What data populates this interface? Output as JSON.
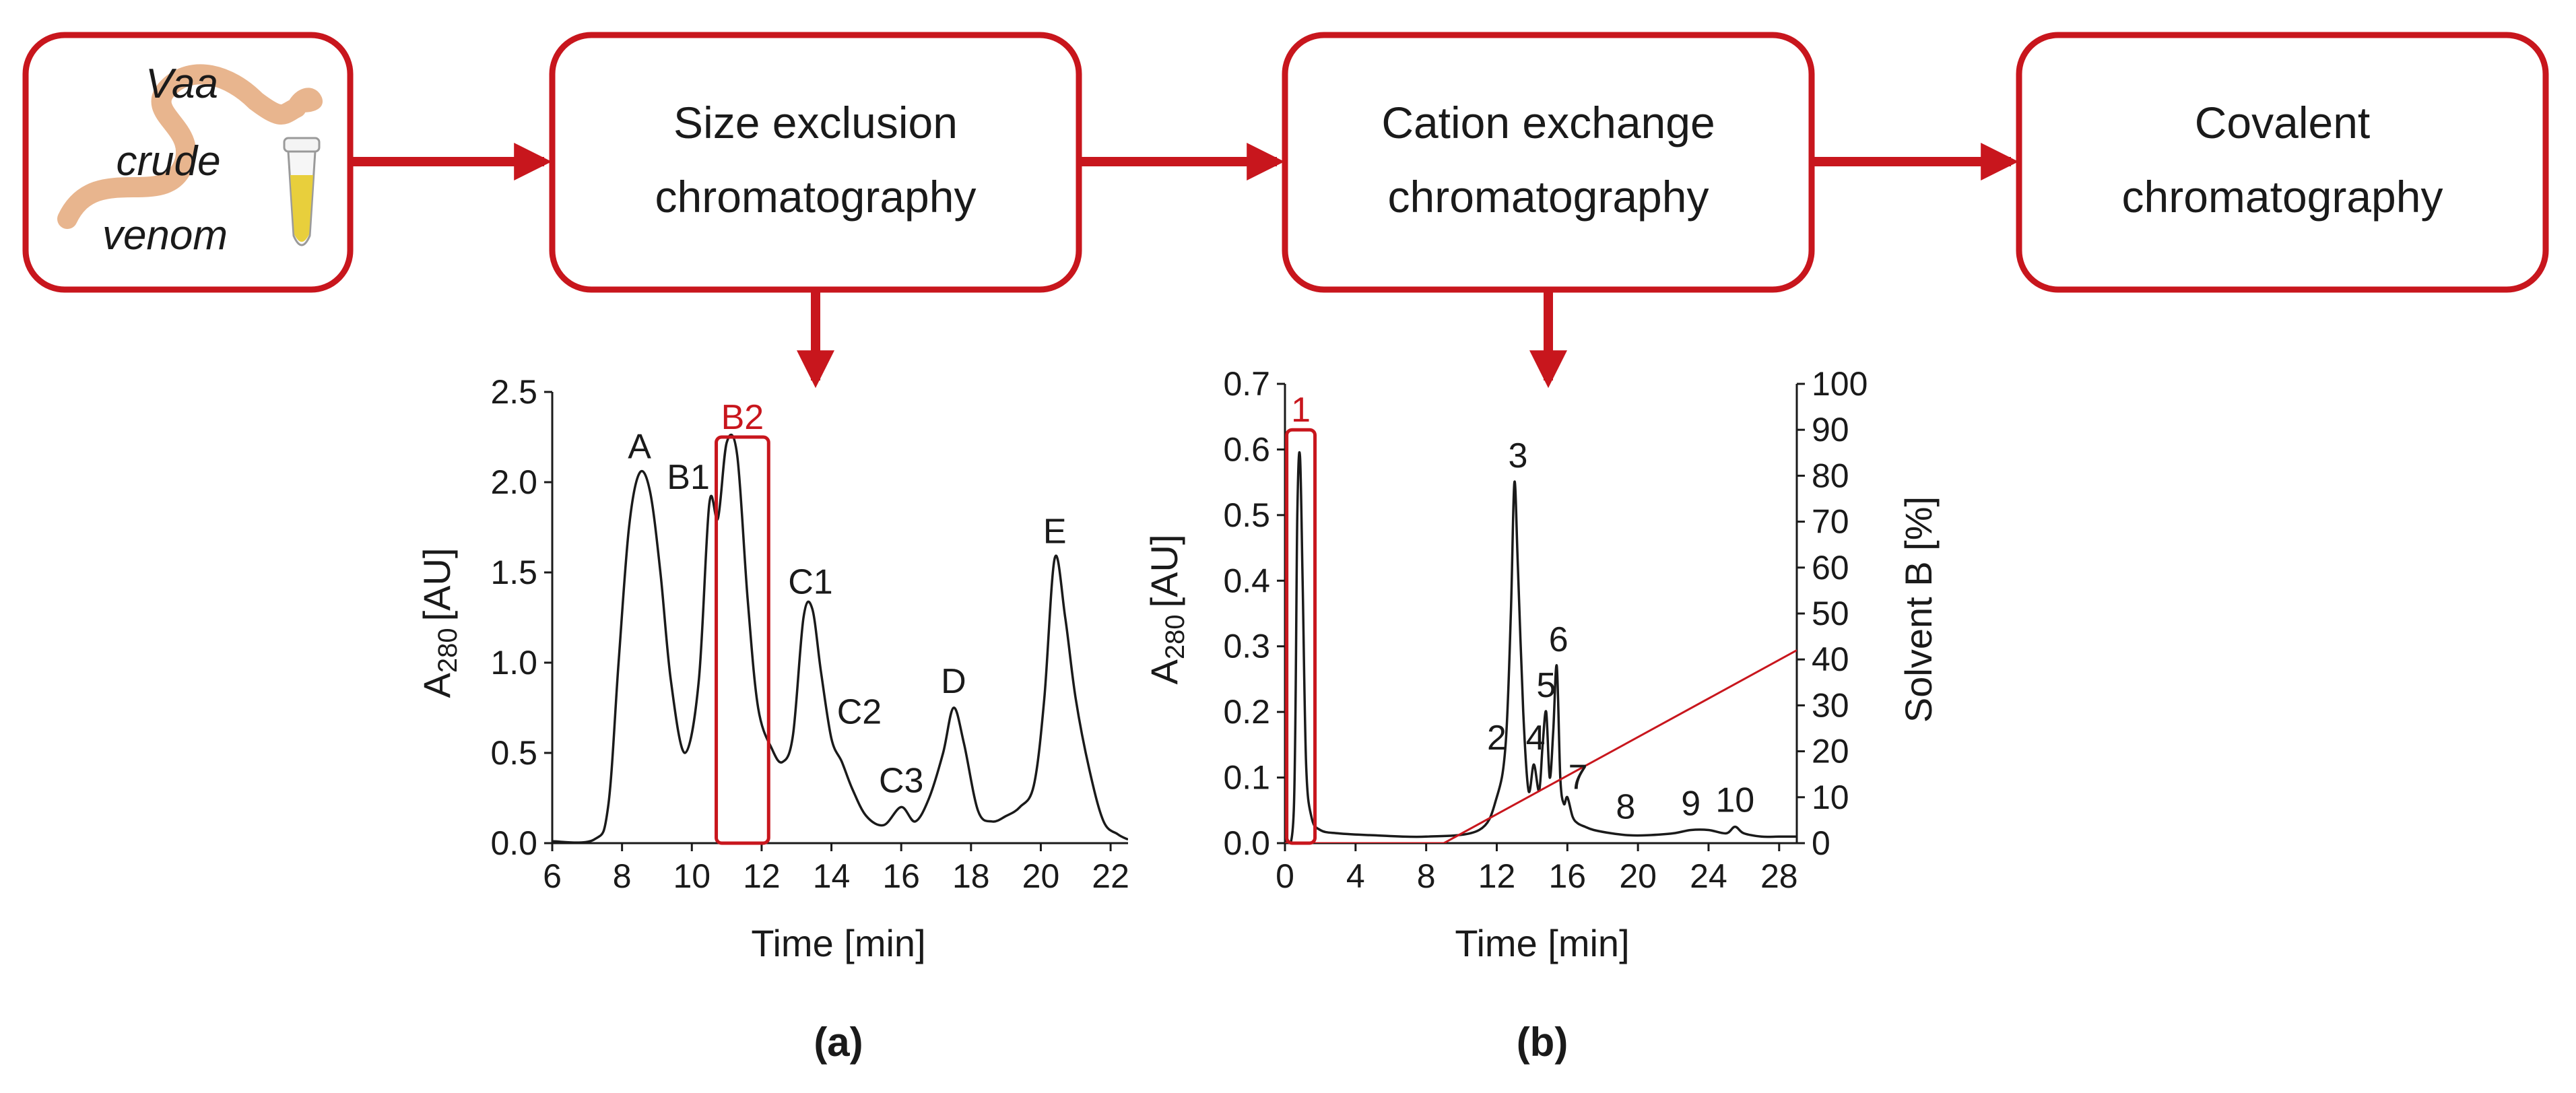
{
  "flow": {
    "steps": [
      {
        "id": "venom",
        "lines": [
          "Vaa",
          "crude",
          "venom"
        ]
      },
      {
        "id": "sec",
        "lines": [
          "Size exclusion",
          "chromatography"
        ]
      },
      {
        "id": "cex",
        "lines": [
          "Cation exchange",
          "chromatography"
        ]
      },
      {
        "id": "cov",
        "lines": [
          "Covalent",
          "chromatography"
        ]
      }
    ],
    "colors": {
      "accent": "#c8161d",
      "ink": "#1a1a1a",
      "snake": "#e8b58e",
      "tube": "#e8cf3c"
    }
  },
  "chart_data": [
    {
      "panel": "(a)",
      "type": "line",
      "xlabel": "Time [min]",
      "ylabel_main": "A",
      "ylabel_sub": "280",
      "ylabel_unit": "[AU]",
      "xlim": [
        6,
        22.5
      ],
      "ylim": [
        0,
        2.5
      ],
      "xticks": [
        6,
        8,
        10,
        12,
        14,
        16,
        18,
        20,
        22
      ],
      "yticks": [
        0.0,
        0.5,
        1.0,
        1.5,
        2.0,
        2.5
      ],
      "ytick_labels": [
        "0.0",
        "0.5",
        "1.0",
        "1.5",
        "2.0",
        "2.5"
      ],
      "series": [
        {
          "name": "A280",
          "x": [
            6,
            7.2,
            7.6,
            7.9,
            8.2,
            8.5,
            8.8,
            9.1,
            9.4,
            9.8,
            10.2,
            10.5,
            10.75,
            11.0,
            11.3,
            11.6,
            11.9,
            12.3,
            12.6,
            12.9,
            13.2,
            13.45,
            13.7,
            14.0,
            14.3,
            14.6,
            15.0,
            15.5,
            16.0,
            16.4,
            16.8,
            17.2,
            17.5,
            17.8,
            18.2,
            18.6,
            19.0,
            19.4,
            19.8,
            20.1,
            20.4,
            20.7,
            21.0,
            21.4,
            21.8,
            22.2,
            22.5
          ],
          "y": [
            0.01,
            0.02,
            0.2,
            1.0,
            1.75,
            2.05,
            1.95,
            1.5,
            0.9,
            0.5,
            0.9,
            1.88,
            1.8,
            2.22,
            2.15,
            1.35,
            0.75,
            0.52,
            0.45,
            0.6,
            1.25,
            1.3,
            0.95,
            0.58,
            0.45,
            0.3,
            0.15,
            0.1,
            0.2,
            0.12,
            0.25,
            0.5,
            0.75,
            0.55,
            0.18,
            0.12,
            0.15,
            0.2,
            0.32,
            0.8,
            1.58,
            1.25,
            0.8,
            0.4,
            0.12,
            0.05,
            0.02
          ]
        }
      ],
      "peak_labels": [
        {
          "text": "A",
          "x": 8.5,
          "y": 2.05
        },
        {
          "text": "B1",
          "x": 9.9,
          "y": 1.88
        },
        {
          "text": "C1",
          "x": 13.4,
          "y": 1.3
        },
        {
          "text": "C2",
          "x": 14.8,
          "y": 0.58
        },
        {
          "text": "C3",
          "x": 16.0,
          "y": 0.2
        },
        {
          "text": "D",
          "x": 17.5,
          "y": 0.75
        },
        {
          "text": "E",
          "x": 20.4,
          "y": 1.58
        }
      ],
      "highlight": {
        "label": "B2",
        "x": [
          10.7,
          12.2
        ],
        "y": [
          0,
          2.25
        ]
      }
    },
    {
      "panel": "(b)",
      "type": "line",
      "xlabel": "Time [min]",
      "ylabel_main": "A",
      "ylabel_sub": "280",
      "ylabel_unit": "[AU]",
      "ylabel_right": "Solvent B [%]",
      "xlim": [
        0,
        29
      ],
      "ylim": [
        0,
        0.7
      ],
      "ylim_right": [
        0,
        100
      ],
      "xticks": [
        0,
        4,
        8,
        12,
        16,
        20,
        24,
        28
      ],
      "yticks": [
        0.0,
        0.1,
        0.2,
        0.3,
        0.4,
        0.5,
        0.6,
        0.7
      ],
      "ytick_labels": [
        "0.0",
        "0.1",
        "0.2",
        "0.3",
        "0.4",
        "0.5",
        "0.6",
        "0.7"
      ],
      "yticks_right": [
        0,
        10,
        20,
        30,
        40,
        50,
        60,
        70,
        80,
        90,
        100
      ],
      "series": [
        {
          "name": "A280",
          "x": [
            0,
            0.5,
            0.7,
            0.85,
            1.0,
            1.2,
            1.5,
            2.0,
            3.0,
            5.0,
            8.0,
            11.0,
            12.0,
            12.5,
            12.8,
            13.0,
            13.2,
            13.5,
            13.8,
            14.1,
            14.4,
            14.6,
            14.8,
            15.0,
            15.2,
            15.4,
            15.6,
            15.8,
            16.0,
            16.3,
            16.6,
            17.0,
            17.5,
            18.5,
            19.5,
            20.5,
            22.0,
            23.0,
            24.0,
            25.0,
            25.5,
            26.0,
            27.0,
            28.0,
            29.0
          ],
          "y": [
            0.0,
            0.05,
            0.5,
            0.59,
            0.4,
            0.12,
            0.04,
            0.02,
            0.015,
            0.012,
            0.01,
            0.02,
            0.07,
            0.15,
            0.35,
            0.55,
            0.42,
            0.2,
            0.08,
            0.12,
            0.08,
            0.15,
            0.2,
            0.1,
            0.17,
            0.27,
            0.1,
            0.06,
            0.07,
            0.04,
            0.03,
            0.025,
            0.02,
            0.015,
            0.012,
            0.012,
            0.015,
            0.02,
            0.02,
            0.015,
            0.025,
            0.015,
            0.01,
            0.01,
            0.01
          ]
        },
        {
          "name": "Solvent B",
          "axis": "right",
          "color": "#c8161d",
          "x": [
            0,
            9,
            29
          ],
          "y": [
            0,
            0,
            42
          ]
        }
      ],
      "peak_labels": [
        {
          "text": "2",
          "x": 12.0,
          "y": 0.12
        },
        {
          "text": "3",
          "x": 13.2,
          "y": 0.55
        },
        {
          "text": "4",
          "x": 14.2,
          "y": 0.12
        },
        {
          "text": "5",
          "x": 14.8,
          "y": 0.2
        },
        {
          "text": "6",
          "x": 15.5,
          "y": 0.27
        },
        {
          "text": "7",
          "x": 16.6,
          "y": 0.06
        },
        {
          "text": "8",
          "x": 19.3,
          "y": 0.015
        },
        {
          "text": "9",
          "x": 23.0,
          "y": 0.02
        },
        {
          "text": "10",
          "x": 25.5,
          "y": 0.025
        }
      ],
      "highlight": {
        "label": "1",
        "x": [
          0.1,
          1.7
        ],
        "y": [
          0,
          0.63
        ]
      }
    }
  ]
}
